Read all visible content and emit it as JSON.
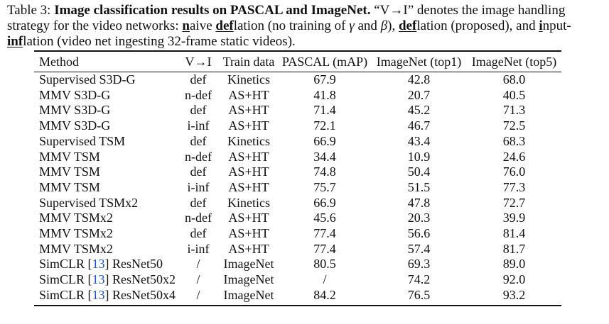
{
  "caption": {
    "label": "Table 3:",
    "title": "Image classification results on PASCAL and ImageNet.",
    "part1": "“V→I” denotes the image handling strategy for the video networks:",
    "naive_n": "n",
    "naive_rest": "aive",
    "deflation1_bold": "def",
    "deflation1_rest": "lation (no training of",
    "gamma": "γ",
    "and": "and",
    "beta": "β",
    "after_beta": "),",
    "deflation2_bold": "def",
    "deflation2_rest": "lation (proposed),",
    "and2": "and",
    "input_i": "i",
    "input_rest": "nput-",
    "inf_bold": "inf",
    "inflation_rest": "lation (video net ingesting 32-frame static videos)."
  },
  "table": {
    "headers": [
      "Method",
      "V→I",
      "Train data",
      "PASCAL (mAP)",
      "ImageNet (top1)",
      "ImageNet (top5)"
    ],
    "rows": [
      {
        "method": "Supervised S3D-G",
        "ref": "",
        "method_suffix": "",
        "vi": "def",
        "train": "Kinetics",
        "pascal": "67.9",
        "top1": "42.8",
        "top5": "68.0"
      },
      {
        "method": "MMV S3D-G",
        "ref": "",
        "method_suffix": "",
        "vi": "n-def",
        "train": "AS+HT",
        "pascal": "41.8",
        "top1": "20.7",
        "top5": "40.5"
      },
      {
        "method": "MMV S3D-G",
        "ref": "",
        "method_suffix": "",
        "vi": "def",
        "train": "AS+HT",
        "pascal": "71.4",
        "top1": "45.2",
        "top5": "71.3"
      },
      {
        "method": "MMV S3D-G",
        "ref": "",
        "method_suffix": "",
        "vi": "i-inf",
        "train": "AS+HT",
        "pascal": "72.1",
        "top1": "46.7",
        "top5": "72.5"
      },
      {
        "method": "Supervised TSM",
        "ref": "",
        "method_suffix": "",
        "vi": "def",
        "train": "Kinetics",
        "pascal": "66.9",
        "top1": "43.4",
        "top5": "68.3"
      },
      {
        "method": "MMV TSM",
        "ref": "",
        "method_suffix": "",
        "vi": "n-def",
        "train": "AS+HT",
        "pascal": "34.4",
        "top1": "10.9",
        "top5": "24.6"
      },
      {
        "method": "MMV TSM",
        "ref": "",
        "method_suffix": "",
        "vi": "def",
        "train": "AS+HT",
        "pascal": "74.8",
        "top1": "50.4",
        "top5": "76.0"
      },
      {
        "method": "MMV TSM",
        "ref": "",
        "method_suffix": "",
        "vi": "i-inf",
        "train": "AS+HT",
        "pascal": "75.7",
        "top1": "51.5",
        "top5": "77.3"
      },
      {
        "method": "Supervised TSMx2",
        "ref": "",
        "method_suffix": "",
        "vi": "def",
        "train": "Kinetics",
        "pascal": "66.9",
        "top1": "47.8",
        "top5": "72.7"
      },
      {
        "method": "MMV TSMx2",
        "ref": "",
        "method_suffix": "",
        "vi": "n-def",
        "train": "AS+HT",
        "pascal": "45.6",
        "top1": "20.3",
        "top5": "39.9"
      },
      {
        "method": "MMV TSMx2",
        "ref": "",
        "method_suffix": "",
        "vi": "def",
        "train": "AS+HT",
        "pascal": "77.4",
        "top1": "56.6",
        "top5": "81.4"
      },
      {
        "method": "MMV TSMx2",
        "ref": "",
        "method_suffix": "",
        "vi": "i-inf",
        "train": "AS+HT",
        "pascal": "77.4",
        "top1": "57.4",
        "top5": "81.7"
      },
      {
        "method": "SimCLR [",
        "ref": "13",
        "method_suffix": "] ResNet50",
        "vi": "/",
        "train": "ImageNet",
        "pascal": "80.5",
        "top1": "69.3",
        "top5": "89.0"
      },
      {
        "method": "SimCLR [",
        "ref": "13",
        "method_suffix": "] ResNet50x2",
        "vi": "/",
        "train": "ImageNet",
        "pascal": "/",
        "top1": "74.2",
        "top5": "92.0"
      },
      {
        "method": "SimCLR [",
        "ref": "13",
        "method_suffix": "] ResNet50x4",
        "vi": "/",
        "train": "ImageNet",
        "pascal": "84.2",
        "top1": "76.5",
        "top5": "93.2"
      }
    ]
  }
}
